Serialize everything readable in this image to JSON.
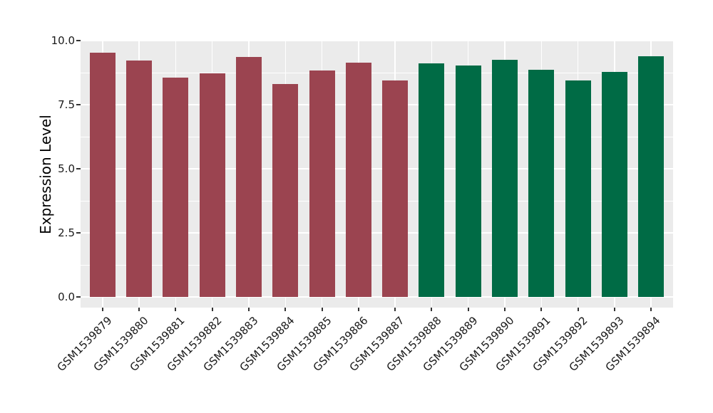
{
  "chart_data": {
    "type": "bar",
    "title": "",
    "xlabel": "",
    "ylabel": "Expression Level",
    "ylim": [
      0,
      10
    ],
    "grid": "on",
    "legend_position": "none",
    "panel_background": "#EBEBEB",
    "grid_color": "#FFFFFF",
    "tick_color": "#333333",
    "yticks": [
      {
        "value": 0,
        "label": "0.0"
      },
      {
        "value": 2.5,
        "label": "2.5"
      },
      {
        "value": 5,
        "label": "5.0"
      },
      {
        "value": 7.5,
        "label": "7.5"
      },
      {
        "value": 10,
        "label": "10.0"
      }
    ],
    "minor_yticks": [
      1.25,
      3.75,
      6.25,
      8.75
    ],
    "categories": [
      "GSM1539879",
      "GSM1539880",
      "GSM1539881",
      "GSM1539882",
      "GSM1539883",
      "GSM1539884",
      "GSM1539885",
      "GSM1539886",
      "GSM1539887",
      "GSM1539888",
      "GSM1539889",
      "GSM1539890",
      "GSM1539891",
      "GSM1539892",
      "GSM1539893",
      "GSM1539894"
    ],
    "values": [
      9.53,
      9.22,
      8.56,
      8.72,
      9.35,
      8.31,
      8.83,
      9.14,
      8.44,
      9.12,
      9.03,
      9.26,
      8.86,
      8.45,
      8.79,
      9.39
    ],
    "bar_colors": [
      "#9B4450",
      "#9B4450",
      "#9B4450",
      "#9B4450",
      "#9B4450",
      "#9B4450",
      "#9B4450",
      "#9B4450",
      "#9B4450",
      "#006B45",
      "#006B45",
      "#006B45",
      "#006B45",
      "#006B45",
      "#006B45",
      "#006B45"
    ],
    "groups": [
      {
        "color": "#9B4450",
        "samples": [
          "GSM1539879",
          "GSM1539880",
          "GSM1539881",
          "GSM1539882",
          "GSM1539883",
          "GSM1539884",
          "GSM1539885",
          "GSM1539886",
          "GSM1539887"
        ]
      },
      {
        "color": "#006B45",
        "samples": [
          "GSM1539888",
          "GSM1539889",
          "GSM1539890",
          "GSM1539891",
          "GSM1539892",
          "GSM1539893",
          "GSM1539894"
        ]
      }
    ]
  }
}
